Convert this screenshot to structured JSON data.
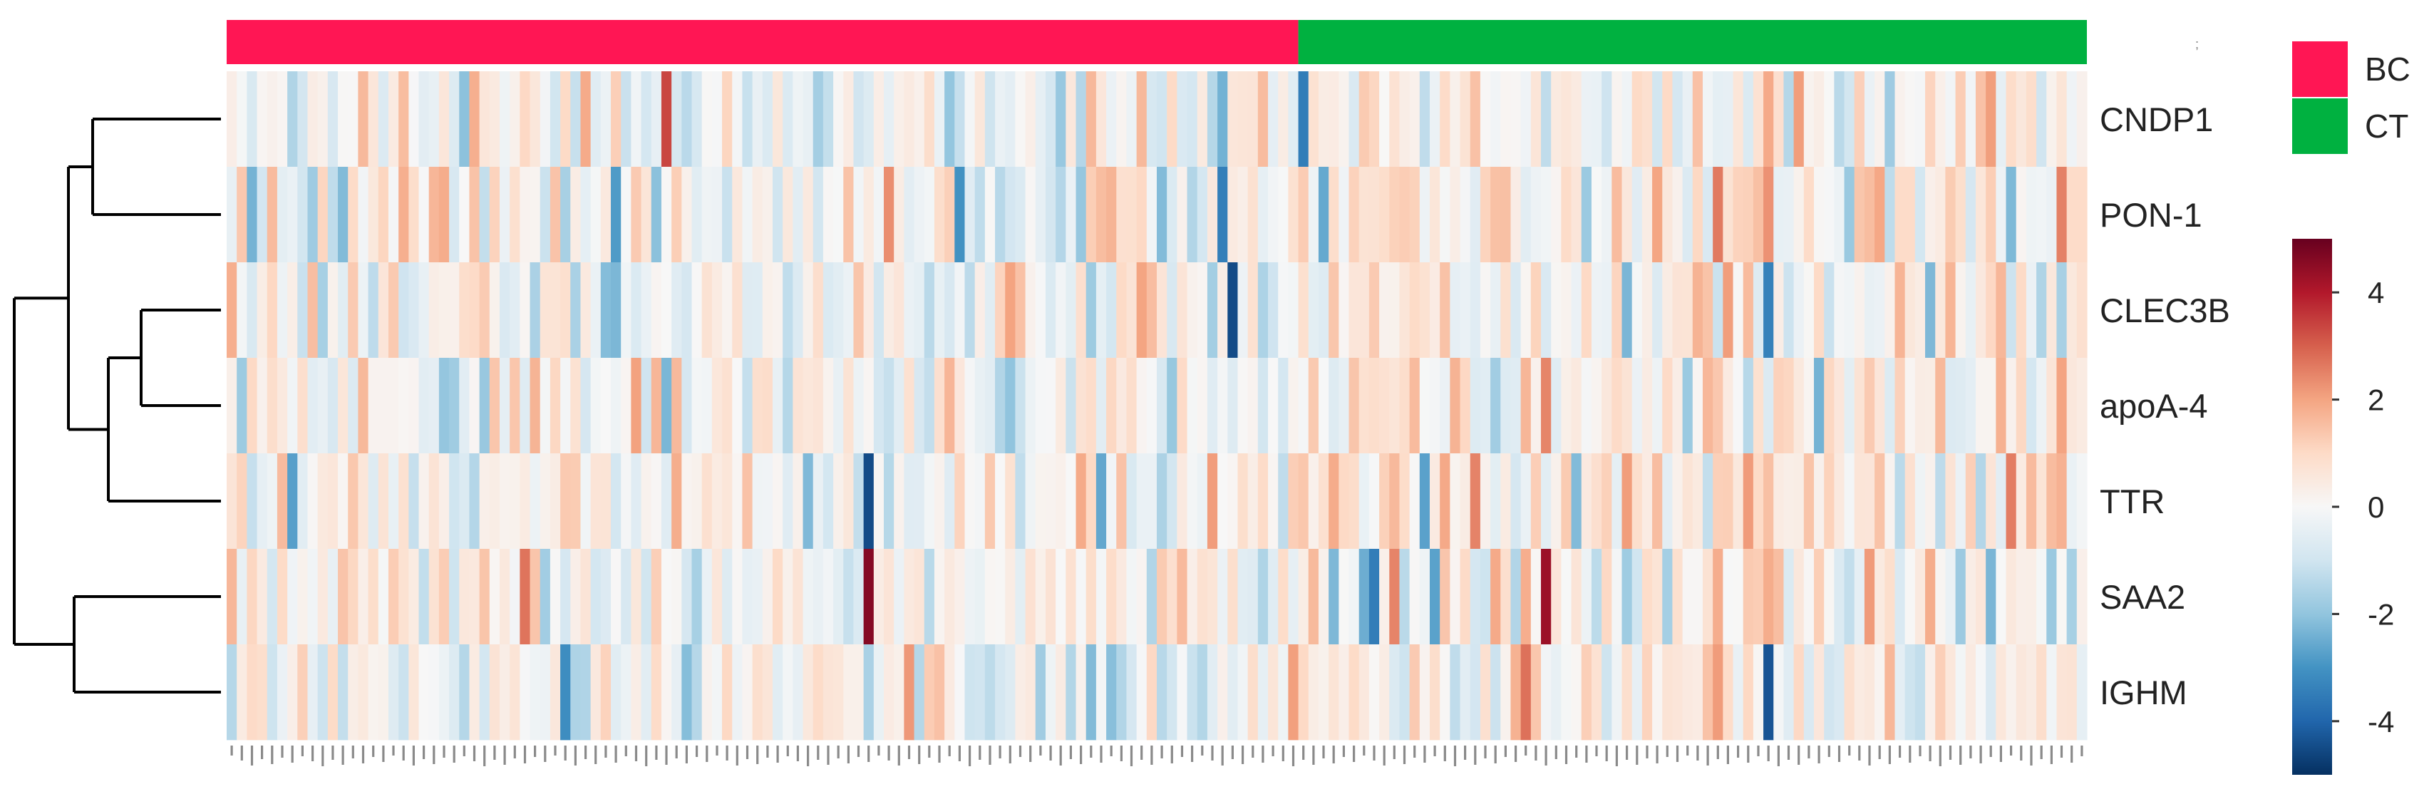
{
  "chart_data": {
    "type": "heatmap",
    "title": "",
    "rows": [
      "CNDP1",
      "PON-1",
      "CLEC3B",
      "apoA-4",
      "TTR",
      "SAA2",
      "IGHM"
    ],
    "n_columns": 184,
    "groups": [
      {
        "name": "BC",
        "color": "#FF1654",
        "n_samples": 106
      },
      {
        "name": "CT",
        "color": "#00B140",
        "n_samples": 78
      }
    ],
    "color_scale": {
      "min": -5,
      "max": 5,
      "ticks": [
        4,
        2,
        0,
        -2,
        -4
      ],
      "tick_labels": [
        "4",
        "2",
        "0",
        "-2",
        "-4"
      ],
      "colors": [
        "#053061",
        "#2166AC",
        "#4393C3",
        "#92C5DE",
        "#D1E5F0",
        "#F7F7F7",
        "#FDDBC7",
        "#F4A582",
        "#D6604D",
        "#B2182B",
        "#67001F"
      ]
    },
    "dendrogram": {
      "merges": [
        [
          "CNDP1",
          "PON-1"
        ],
        [
          "CLEC3B",
          "apoA-4"
        ],
        [
          [
            "CLEC3B",
            "apoA-4"
          ],
          "TTR"
        ],
        [
          [
            "CNDP1",
            "PON-1"
          ],
          [
            [
              "CLEC3B",
              "apoA-4"
            ],
            "TTR"
          ]
        ],
        [
          "SAA2",
          "IGHM"
        ],
        [
          "all-upper",
          [
            "SAA2",
            "IGHM"
          ]
        ]
      ]
    },
    "notable_cells": [
      {
        "row": "CNDP1",
        "column": 106,
        "value": -3.5
      },
      {
        "row": "CLEC3B",
        "column": 99,
        "value": -4.5
      },
      {
        "row": "TTR",
        "column": 63,
        "value": -4.5
      },
      {
        "row": "SAA2",
        "column": 63,
        "value": 4.6
      },
      {
        "row": "SAA2",
        "column": 130,
        "value": 4.3
      },
      {
        "row": "SAA2",
        "column": 113,
        "value": -3.5
      }
    ]
  },
  "legend": {
    "items": [
      {
        "label": "BC",
        "color": "#FF1654"
      },
      {
        "label": "CT",
        "color": "#00B140"
      }
    ]
  }
}
